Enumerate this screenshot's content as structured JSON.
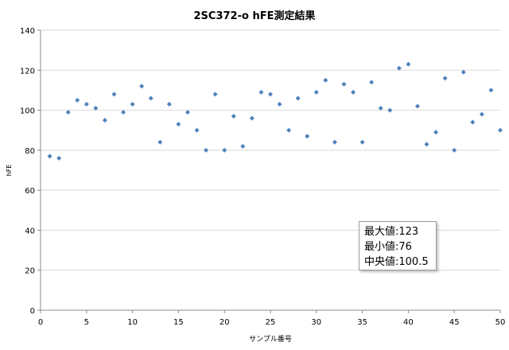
{
  "chart_data": {
    "type": "scatter",
    "title": "2SC372-o hFE測定結果",
    "xlabel": "サンプル番号",
    "ylabel": "hFE",
    "xlim": [
      0,
      50
    ],
    "ylim": [
      0,
      140
    ],
    "xticks": [
      0,
      5,
      10,
      15,
      20,
      25,
      30,
      35,
      40,
      45,
      50
    ],
    "yticks": [
      0,
      20,
      40,
      60,
      80,
      100,
      120,
      140
    ],
    "grid": "horizontal",
    "marker_color": "#4f81bd",
    "series": [
      {
        "x": [
          1,
          2,
          3,
          4,
          5,
          6,
          7,
          8,
          9,
          10,
          11,
          12,
          13,
          14,
          15,
          16,
          17,
          18,
          19,
          20,
          21,
          22,
          23,
          24,
          25,
          26,
          27,
          28,
          29,
          30,
          31,
          32,
          33,
          34,
          35,
          36,
          37,
          38,
          39,
          40,
          41,
          42,
          43,
          44,
          45,
          46,
          47,
          48,
          49,
          50
        ],
        "y": [
          77,
          76,
          99,
          105,
          103,
          101,
          95,
          108,
          99,
          103,
          112,
          106,
          84,
          103,
          93,
          99,
          90,
          80,
          108,
          80,
          97,
          82,
          96,
          109,
          108,
          103,
          90,
          106,
          87,
          109,
          115,
          84,
          113,
          109,
          84,
          114,
          101,
          100,
          121,
          123,
          102,
          83,
          89,
          116,
          80,
          119,
          94,
          98,
          110,
          90
        ]
      }
    ]
  },
  "stats": {
    "lines": [
      "最大値:123",
      "最小値:76",
      "中央値:100.5"
    ]
  }
}
